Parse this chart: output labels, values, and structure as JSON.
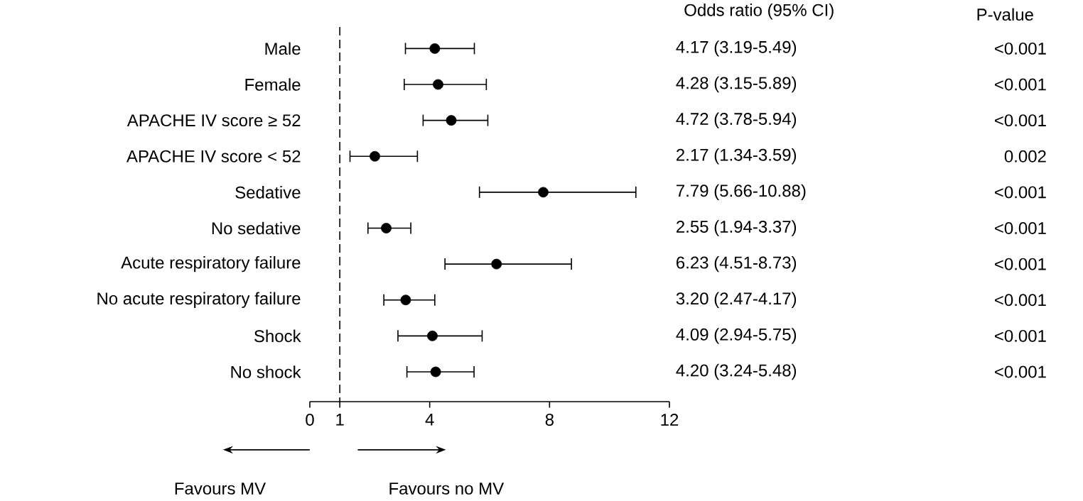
{
  "chart_data": {
    "type": "scatter",
    "orientation": "horizontal",
    "categories": [
      "Male",
      "Female",
      "APACHE IV score ≥ 52",
      "APACHE IV score < 52",
      "Sedative",
      "No sedative",
      "Acute respiratory failure",
      "No acute respiratory failure",
      "Shock",
      "No shock"
    ],
    "values": [
      4.17,
      4.28,
      4.72,
      2.17,
      7.79,
      2.55,
      6.23,
      3.2,
      4.09,
      4.2
    ],
    "errors": [
      [
        3.19,
        5.49
      ],
      [
        3.15,
        5.89
      ],
      [
        3.78,
        5.94
      ],
      [
        1.34,
        3.59
      ],
      [
        5.66,
        10.88
      ],
      [
        1.94,
        3.37
      ],
      [
        4.51,
        8.73
      ],
      [
        2.47,
        4.17
      ],
      [
        2.94,
        5.75
      ],
      [
        3.24,
        5.48
      ]
    ],
    "color": "#000000",
    "marker": "circle",
    "grid": false,
    "xlim": [
      0,
      12
    ],
    "xticks": [
      0,
      1,
      4,
      8,
      12
    ],
    "ref_lines": [
      {
        "axis": "x",
        "value": 1,
        "line_style": "dashed",
        "color": "#000000"
      }
    ],
    "annotations": [
      "Odds ratio (95% CI)",
      "P-value",
      "4.17 (3.19-5.49)",
      "4.28 (3.15-5.89)",
      "4.72 (3.78-5.94)",
      "2.17 (1.34-3.59)",
      "7.79 (5.66-10.88)",
      "2.55 (1.94-3.37)",
      "6.23 (4.51-8.73)",
      "3.20 (2.47-4.17)",
      "4.09 (2.94-5.75)",
      "4.20 (3.24-5.48)",
      "<0.001",
      "<0.001",
      "<0.001",
      "0.002",
      "<0.001",
      "<0.001",
      "<0.001",
      "<0.001",
      "<0.001",
      "<0.001",
      "Favours MV",
      "Favours no MV"
    ]
  }
}
